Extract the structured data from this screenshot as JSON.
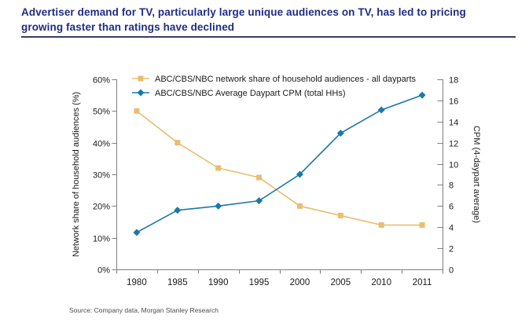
{
  "page": {
    "title_line1": "Advertiser demand for TV, particularly large unique audiences on TV, has led to pricing",
    "title_line2": "growing faster than ratings have declined",
    "source": "Source: Company data, Morgan Stanley Research"
  },
  "colors": {
    "title_navy": "#202C83",
    "title_rule": "#3D3D66",
    "share_series": "#E9BE6F",
    "cpm_series": "#1B79A9",
    "axis_line": "#7F7F7F",
    "label_text": "#1A1A1A",
    "source_text": "#4D4D4D"
  },
  "chart_data": {
    "type": "line",
    "categories": [
      "1980",
      "1985",
      "1990",
      "1995",
      "2000",
      "2005",
      "2010",
      "2011"
    ],
    "series": [
      {
        "name": "ABC/CBS/NBC network share of household audiences - all dayparts",
        "axis": "left",
        "marker": "square",
        "color": "#E9BE6F",
        "values": [
          50,
          40,
          32,
          29,
          20,
          17,
          14,
          14
        ]
      },
      {
        "name": "ABC/CBS/NBC Average Daypart CPM (total HHs)",
        "axis": "right",
        "marker": "diamond",
        "color": "#1B79A9",
        "values": [
          3.5,
          5.6,
          6.0,
          6.5,
          9.0,
          12.9,
          15.1,
          16.5
        ]
      }
    ],
    "left_axis": {
      "label": "Network share of household audiences (%)",
      "min": 0,
      "max": 60,
      "step": 10,
      "suffix": "%",
      "tick_labels": [
        "0%",
        "10%",
        "20%",
        "30%",
        "40%",
        "50%",
        "60%"
      ]
    },
    "right_axis": {
      "label": "CPM (4-daypart average)",
      "min": 0,
      "max": 18,
      "step": 2,
      "tick_labels": [
        "0",
        "2",
        "4",
        "6",
        "8",
        "10",
        "12",
        "14",
        "16",
        "18"
      ]
    },
    "legend_position": "top-left-inside",
    "grid": false
  }
}
